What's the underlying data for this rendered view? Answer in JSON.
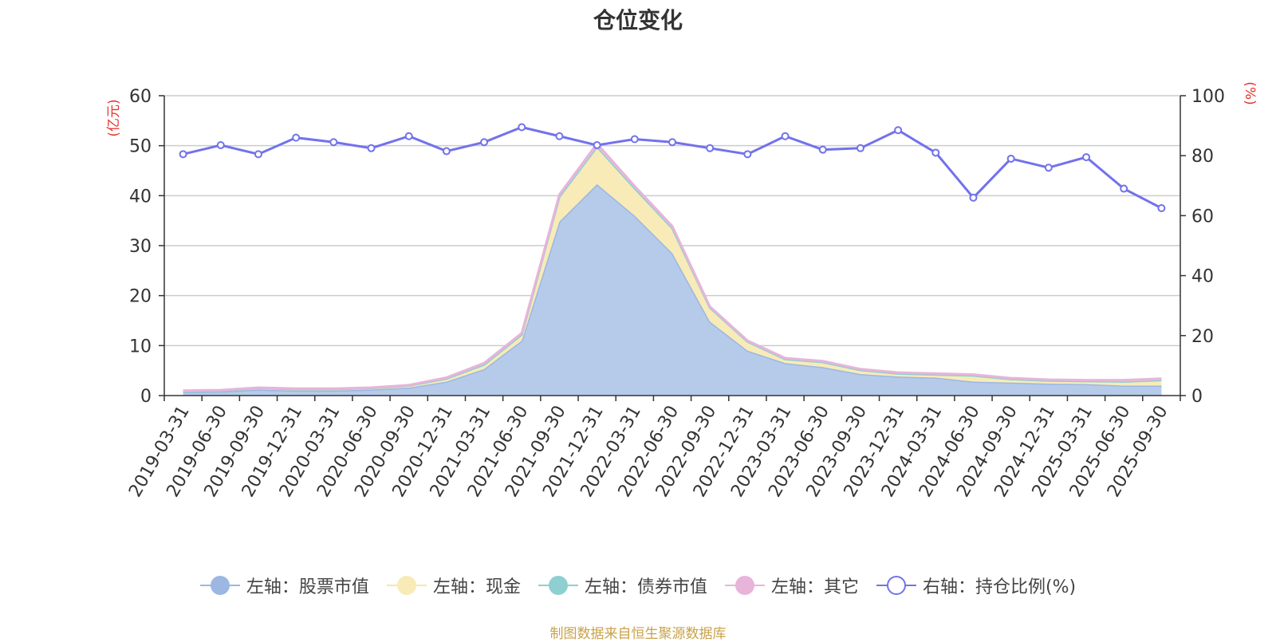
{
  "chart_data": {
    "type": "area",
    "title": "仓位变化",
    "categories": [
      "2019-03-31",
      "2019-06-30",
      "2019-09-30",
      "2019-12-31",
      "2020-03-31",
      "2020-06-30",
      "2020-09-30",
      "2020-12-31",
      "2021-03-31",
      "2021-06-30",
      "2021-09-30",
      "2021-12-31",
      "2022-03-31",
      "2022-06-30",
      "2022-09-30",
      "2022-12-31",
      "2023-03-31",
      "2023-06-30",
      "2023-09-30",
      "2023-12-31",
      "2024-03-31",
      "2024-06-30",
      "2024-09-30",
      "2024-12-31",
      "2025-03-31",
      "2025-06-30",
      "2025-09-30"
    ],
    "left_axis": {
      "label": "(亿元)",
      "ylim": [
        0,
        60
      ],
      "ticks": [
        0,
        10,
        20,
        30,
        40,
        50,
        60
      ]
    },
    "right_axis": {
      "label": "(%)",
      "ylim": [
        0,
        100
      ],
      "ticks": [
        0,
        20,
        40,
        60,
        80,
        100
      ]
    },
    "series": [
      {
        "name": "左轴：股票市值",
        "axis": "left",
        "stack": true,
        "color": "#9bb7e2",
        "fill": "#b6cbea",
        "values": [
          0.7,
          0.8,
          1.2,
          1.0,
          1.0,
          1.2,
          1.6,
          2.8,
          5.3,
          11.0,
          34.8,
          42.3,
          36.0,
          28.5,
          14.8,
          9.0,
          6.5,
          5.7,
          4.3,
          3.8,
          3.6,
          2.8,
          2.6,
          2.4,
          2.3,
          2.0,
          2.0
        ]
      },
      {
        "name": "左轴：现金",
        "axis": "left",
        "stack": true,
        "color": "#f5e6a6",
        "fill": "#f8ebb7",
        "values": [
          0.2,
          0.2,
          0.3,
          0.3,
          0.3,
          0.3,
          0.4,
          0.6,
          0.9,
          1.2,
          5.0,
          7.5,
          5.5,
          5.0,
          2.8,
          1.8,
          0.8,
          1.0,
          0.8,
          0.6,
          0.6,
          1.2,
          0.7,
          0.6,
          0.6,
          0.8,
          1.1
        ]
      },
      {
        "name": "左轴：债券市值",
        "axis": "left",
        "stack": true,
        "color": "#8ecfd1",
        "fill": "#a8dcdc",
        "values": [
          0,
          0,
          0,
          0,
          0,
          0,
          0,
          0,
          0,
          0,
          0,
          0,
          0,
          0,
          0,
          0,
          0,
          0,
          0,
          0,
          0,
          0,
          0,
          0,
          0,
          0,
          0
        ]
      },
      {
        "name": "左轴：其它",
        "axis": "left",
        "stack": true,
        "color": "#e8b4da",
        "fill": "#efc3e3",
        "values": [
          0.1,
          0.1,
          0.1,
          0.1,
          0.1,
          0.1,
          0.1,
          0.2,
          0.3,
          0.3,
          0.4,
          0.6,
          0.4,
          0.4,
          0.2,
          0.2,
          0.2,
          0.2,
          0.2,
          0.2,
          0.2,
          0.2,
          0.2,
          0.2,
          0.2,
          0.3,
          0.3
        ]
      },
      {
        "name": "右轴：持仓比例(%)",
        "axis": "right",
        "stack": false,
        "color": "#7272ec",
        "values": [
          80.5,
          83.5,
          80.5,
          86.0,
          84.5,
          82.5,
          86.5,
          81.5,
          84.5,
          89.5,
          86.5,
          83.5,
          85.5,
          84.5,
          82.5,
          80.5,
          86.5,
          82.0,
          82.5,
          88.5,
          81.0,
          66.0,
          79.0,
          76.0,
          79.5,
          69.0,
          62.5
        ]
      }
    ]
  },
  "legend": {
    "items": [
      {
        "label": "左轴：股票市值",
        "color": "#9bb7e2",
        "line": "#9bb7e2",
        "hollow": false
      },
      {
        "label": "左轴：现金",
        "color": "#f8ebb7",
        "line": "#f5e6a6",
        "hollow": false
      },
      {
        "label": "左轴：债券市值",
        "color": "#8ecfd1",
        "line": "#8ecfd1",
        "hollow": false
      },
      {
        "label": "左轴：其它",
        "color": "#e8b4da",
        "line": "#e8b4da",
        "hollow": false
      },
      {
        "label": "右轴：持仓比例(%)",
        "color": "#7272ec",
        "line": "#7272ec",
        "hollow": true
      }
    ]
  },
  "footer": {
    "source": "制图数据来自恒生聚源数据库"
  }
}
